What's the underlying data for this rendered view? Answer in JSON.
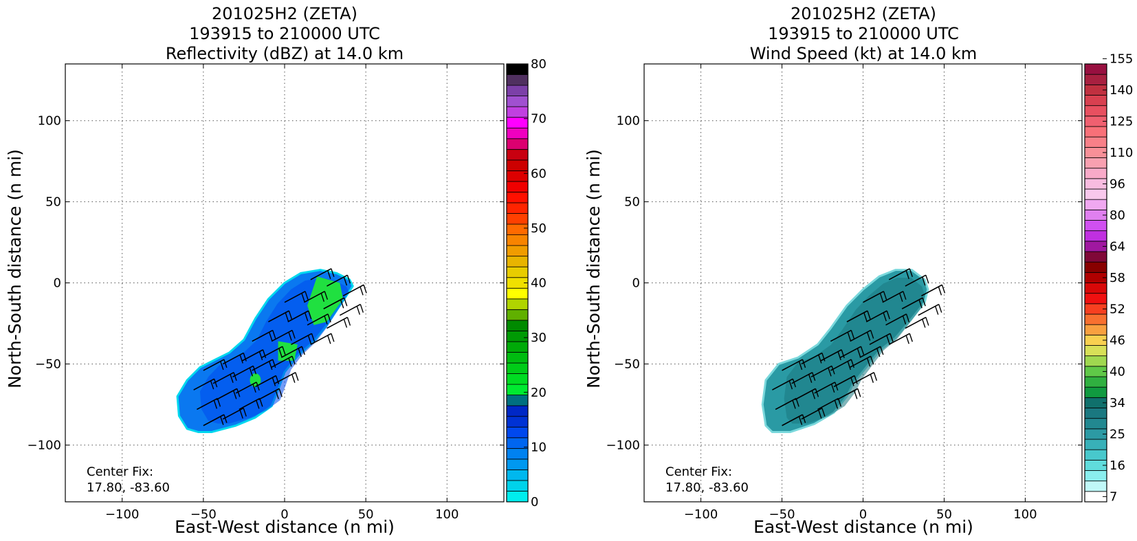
{
  "chart_data": [
    {
      "type": "heatmap",
      "panel": "left",
      "title_lines": [
        "201025H2 (ZETA)",
        "193915 to 210000 UTC",
        "Reflectivity (dBZ) at 14.0 km"
      ],
      "xlabel": "East-West distance (n mi)",
      "ylabel": "North-South distance (n mi)",
      "xlim": [
        -135,
        135
      ],
      "ylim": [
        -135,
        135
      ],
      "xticks": [
        -100,
        -50,
        0,
        50,
        100
      ],
      "yticks": [
        -100,
        -50,
        0,
        50,
        100
      ],
      "xtick_labels": [
        "−100",
        "−50",
        "0",
        "50",
        "100"
      ],
      "ytick_labels": [
        "−100",
        "−50",
        "0",
        "50",
        "100"
      ],
      "grid": true,
      "annotation_lines": [
        "Center Fix:",
        "17.80, -83.60"
      ],
      "colorbar": {
        "min": 0,
        "max": 80,
        "ticks": [
          0,
          10,
          20,
          30,
          40,
          50,
          60,
          70,
          80
        ],
        "tick_labels": [
          "0",
          "10",
          "20",
          "30",
          "40",
          "50",
          "60",
          "70",
          "80"
        ],
        "colors": [
          "#00eeee",
          "#00d2ea",
          "#00b8ee",
          "#0098f0",
          "#0082f0",
          "#0066f0",
          "#0048ee",
          "#0032d4",
          "#0028c6",
          "#007080",
          "#00ea30",
          "#00dc22",
          "#00cc18",
          "#00bc10",
          "#00aa08",
          "#009a04",
          "#008a00",
          "#60b000",
          "#b0d400",
          "#ffff00",
          "#f0e000",
          "#e8cc00",
          "#e8b400",
          "#f09c00",
          "#f88400",
          "#ff6a00",
          "#ff4000",
          "#ff2400",
          "#ff1000",
          "#f00000",
          "#dc0000",
          "#cc0000",
          "#c80010",
          "#dc0070",
          "#f000c0",
          "#ff00ff",
          "#c040e0",
          "#a050d0",
          "#7c40a8",
          "#503060",
          "#000000"
        ]
      },
      "storm_shape": [
        [
          -53,
          -92
        ],
        [
          -45,
          -92
        ],
        [
          -30,
          -88
        ],
        [
          -18,
          -83
        ],
        [
          -8,
          -76
        ],
        [
          -4,
          -66
        ],
        [
          0,
          -55
        ],
        [
          8,
          -45
        ],
        [
          18,
          -36
        ],
        [
          26,
          -26
        ],
        [
          32,
          -17
        ],
        [
          38,
          -8
        ],
        [
          42,
          -2
        ],
        [
          40,
          2
        ],
        [
          32,
          6
        ],
        [
          22,
          8
        ],
        [
          10,
          6
        ],
        [
          0,
          0
        ],
        [
          -10,
          -10
        ],
        [
          -18,
          -22
        ],
        [
          -25,
          -35
        ],
        [
          -34,
          -43
        ],
        [
          -42,
          -47
        ],
        [
          -52,
          -52
        ],
        [
          -60,
          -60
        ],
        [
          -66,
          -70
        ],
        [
          -65,
          -82
        ],
        [
          -60,
          -90
        ]
      ],
      "echo_core": [
        [
          20,
          4
        ],
        [
          34,
          0
        ],
        [
          36,
          -10
        ],
        [
          26,
          -24
        ],
        [
          18,
          -26
        ],
        [
          14,
          -14
        ]
      ],
      "echo_core_2": [
        [
          -4,
          -36
        ],
        [
          8,
          -38
        ],
        [
          6,
          -48
        ],
        [
          -4,
          -48
        ]
      ]
    },
    {
      "type": "heatmap",
      "panel": "right",
      "title_lines": [
        "201025H2 (ZETA)",
        "193915 to 210000 UTC",
        "Wind Speed (kt) at 14.0 km"
      ],
      "xlabel": "East-West distance (n mi)",
      "ylabel": "North-South distance (n mi)",
      "xlim": [
        -135,
        135
      ],
      "ylim": [
        -135,
        135
      ],
      "xticks": [
        -100,
        -50,
        0,
        50,
        100
      ],
      "yticks": [
        -100,
        -50,
        0,
        50,
        100
      ],
      "xtick_labels": [
        "−100",
        "−50",
        "0",
        "50",
        "100"
      ],
      "ytick_labels": [
        "−100",
        "−50",
        "0",
        "50",
        "100"
      ],
      "grid": true,
      "annotation_lines": [
        "Center Fix:",
        "17.80, -83.60"
      ],
      "colorbar": {
        "tick_labels": [
          "7",
          "16",
          "25",
          "34",
          "40",
          "46",
          "52",
          "58",
          "64",
          "80",
          "96",
          "110",
          "125",
          "140",
          "155"
        ],
        "tick_levels": [
          0.5,
          3.5,
          6.5,
          9.5,
          12.5,
          15.5,
          18.5,
          21.5,
          24.5,
          27.5,
          30.5,
          33.5,
          36.5,
          39.5,
          42.5
        ],
        "colors": [
          "#ffffff",
          "#c0f8f8",
          "#8aeeee",
          "#60dcdc",
          "#48c8cc",
          "#38b0b8",
          "#2c9aa4",
          "#228890",
          "#1a7880",
          "#10706c",
          "#109a40",
          "#30b040",
          "#60c848",
          "#a0d850",
          "#d8e058",
          "#f8d050",
          "#f8a040",
          "#f87030",
          "#f84020",
          "#f01010",
          "#d80808",
          "#b00000",
          "#880000",
          "#800838",
          "#a018a0",
          "#c030e0",
          "#d050f0",
          "#e080f0",
          "#f0a8f0",
          "#f8c8ec",
          "#f8bce0",
          "#f8aac8",
          "#f8a0b0",
          "#f89098",
          "#f88088",
          "#f87078",
          "#f06070",
          "#e85060",
          "#d84050",
          "#c03040",
          "#a82040",
          "#981040"
        ]
      },
      "storm_shape": [
        [
          -56,
          -92
        ],
        [
          -45,
          -92
        ],
        [
          -30,
          -87
        ],
        [
          -18,
          -80
        ],
        [
          -10,
          -70
        ],
        [
          -6,
          -62
        ],
        [
          2,
          -52
        ],
        [
          10,
          -42
        ],
        [
          20,
          -34
        ],
        [
          30,
          -22
        ],
        [
          38,
          -12
        ],
        [
          40,
          -4
        ],
        [
          38,
          2
        ],
        [
          30,
          8
        ],
        [
          20,
          8
        ],
        [
          10,
          4
        ],
        [
          0,
          -4
        ],
        [
          -10,
          -14
        ],
        [
          -20,
          -28
        ],
        [
          -28,
          -38
        ],
        [
          -40,
          -46
        ],
        [
          -52,
          -50
        ],
        [
          -60,
          -60
        ],
        [
          -62,
          -75
        ],
        [
          -60,
          -88
        ]
      ]
    }
  ]
}
